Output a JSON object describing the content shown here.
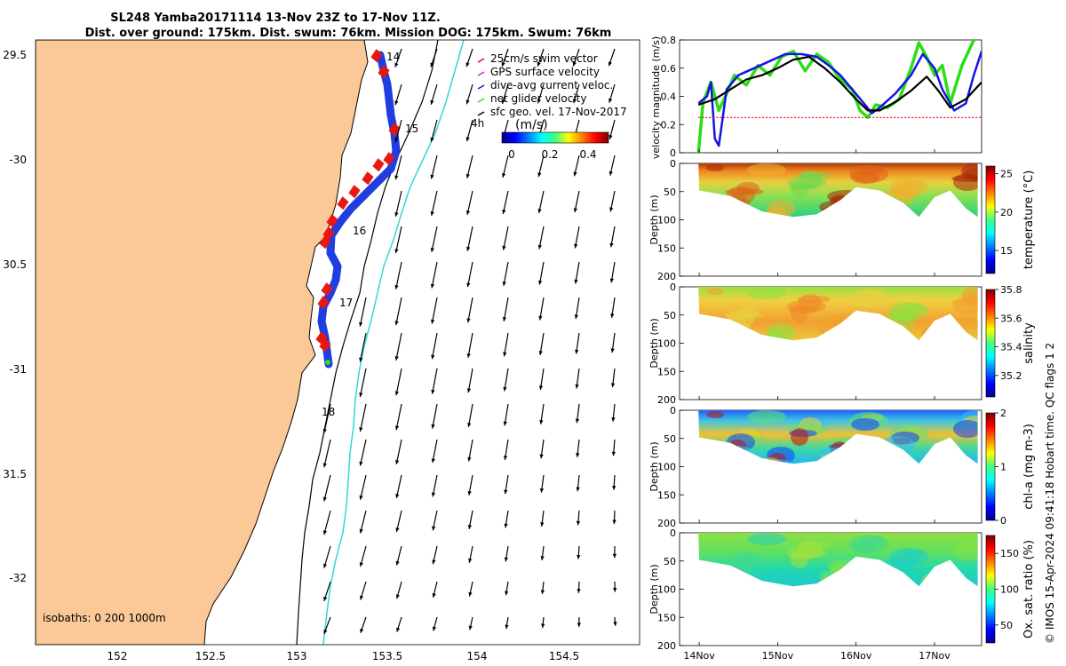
{
  "title": {
    "line1": "SL248 Yamba20171114 13-Nov 23Z to 17-Nov 11Z.",
    "line2": "Dist. over ground: 175km. Dist. swum: 76km. Mission DOG: 175km. Swum: 76km"
  },
  "credit": "© IMOS 15-Apr-2024 09:41:18 Hobart time. QC flags 1  2",
  "colors": {
    "land": "#fbc898",
    "track_blue": "#1f3de0",
    "track_red": "#e8160f",
    "green": "#2ee014",
    "cyan": "#30d8d8",
    "vel_blue": "#1414e6",
    "vel_green": "#2cde14",
    "vel_red": "#e60000"
  },
  "map": {
    "lon_ticks": [
      "152",
      "152.5",
      "153",
      "153.5",
      "154",
      "154.5"
    ],
    "lat_ticks": [
      "29.5",
      "-30",
      "30.5",
      "-31",
      "31.5",
      "-32"
    ],
    "day_labels": [
      "14",
      "15",
      "16",
      "17",
      "18"
    ],
    "isobaths_text": "isobaths: 0   200  1000m",
    "legend": [
      {
        "label": "25cm/s swim vector",
        "color": "#e60000"
      },
      {
        "label": "GPS surface velocity",
        "color": "#d020d0"
      },
      {
        "label": "dive-avg current veloc.",
        "color": "#1414e6"
      },
      {
        "label": "net glider velocity",
        "color": "#2cde14"
      },
      {
        "label": "sfc geo. vel. 17-Nov-2017",
        "color": "#000000"
      }
    ],
    "colorbar_unit": "(m/s)",
    "colorbar_ticks": [
      "0",
      "0.2",
      "0.4"
    ],
    "arrow_note": "4h"
  },
  "chart_data": [
    {
      "type": "line",
      "name": "velocity",
      "ylabel": "velocity magnitude (m/s)",
      "ylim": [
        0,
        0.8
      ],
      "yticks": [
        "0",
        "0.2",
        "0.4",
        "0.6",
        "0.8"
      ],
      "x_ticklabels": [
        "14Nov",
        "15Nov",
        "16Nov",
        "17Nov"
      ],
      "xlim_days": [
        13.75,
        17.6
      ],
      "series": [
        {
          "color": "net",
          "x": [
            13.99,
            14.05,
            14.15,
            14.25,
            14.35,
            14.45,
            14.6,
            14.75,
            14.9,
            15.05,
            15.2,
            15.35,
            15.5,
            15.65,
            15.8,
            15.95,
            16.05,
            16.15,
            16.25,
            16.4,
            16.55,
            16.7,
            16.8,
            16.9,
            17.0,
            17.1,
            17.2,
            17.35,
            17.5,
            17.6
          ],
          "y": [
            0.0,
            0.36,
            0.5,
            0.3,
            0.42,
            0.55,
            0.48,
            0.62,
            0.55,
            0.68,
            0.72,
            0.58,
            0.7,
            0.64,
            0.52,
            0.45,
            0.3,
            0.25,
            0.34,
            0.32,
            0.38,
            0.6,
            0.78,
            0.68,
            0.55,
            0.62,
            0.35,
            0.62,
            0.8,
            0.82
          ]
        },
        {
          "color": "dive",
          "x": [
            13.99,
            14.1,
            14.15,
            14.2,
            14.25,
            14.35,
            14.5,
            14.7,
            14.9,
            15.1,
            15.3,
            15.5,
            15.65,
            15.8,
            15.95,
            16.1,
            16.2,
            16.3,
            16.5,
            16.7,
            16.85,
            17.0,
            17.1,
            17.25,
            17.4,
            17.5,
            17.6
          ],
          "y": [
            0.35,
            0.4,
            0.5,
            0.1,
            0.05,
            0.45,
            0.55,
            0.6,
            0.65,
            0.7,
            0.7,
            0.68,
            0.62,
            0.55,
            0.45,
            0.35,
            0.28,
            0.32,
            0.42,
            0.55,
            0.7,
            0.6,
            0.45,
            0.3,
            0.35,
            0.55,
            0.72
          ]
        },
        {
          "color": "black",
          "x": [
            13.99,
            14.2,
            14.4,
            14.6,
            14.8,
            15.0,
            15.2,
            15.4,
            15.6,
            15.8,
            16.0,
            16.15,
            16.3,
            16.5,
            16.7,
            16.9,
            17.05,
            17.2,
            17.4,
            17.6
          ],
          "y": [
            0.34,
            0.38,
            0.45,
            0.52,
            0.55,
            0.6,
            0.66,
            0.68,
            0.6,
            0.5,
            0.38,
            0.3,
            0.3,
            0.36,
            0.44,
            0.54,
            0.44,
            0.32,
            0.38,
            0.5
          ]
        },
        {
          "color": "red_dash",
          "x": [
            13.99,
            17.6
          ],
          "y": [
            0.25,
            0.25
          ]
        }
      ]
    },
    {
      "type": "heatmap",
      "name": "temperature",
      "ylabel": "Depth (m)",
      "ylim": [
        200,
        0
      ],
      "yticks": [
        "0",
        "50",
        "100",
        "150",
        "200"
      ],
      "cbar_label": "temperature (°C)",
      "cbar_ticks": [
        "25",
        "20",
        "15"
      ],
      "cbar_range": [
        12,
        26
      ]
    },
    {
      "type": "heatmap",
      "name": "salinity",
      "ylabel": "Depth (m)",
      "ylim": [
        200,
        0
      ],
      "yticks": [
        "0",
        "50",
        "100",
        "150",
        "200"
      ],
      "cbar_label": "salinity",
      "cbar_ticks": [
        "35.8",
        "35.6",
        "35.4",
        "35.2"
      ],
      "cbar_range": [
        35.05,
        35.8
      ]
    },
    {
      "type": "heatmap",
      "name": "chl-a",
      "ylabel": "Depth (m)",
      "ylim": [
        200,
        0
      ],
      "yticks": [
        "0",
        "50",
        "100",
        "150",
        "200"
      ],
      "cbar_label": "chl-a (mg m-3)",
      "cbar_ticks": [
        "2",
        "1",
        "0"
      ],
      "cbar_range": [
        0,
        2
      ]
    },
    {
      "type": "heatmap",
      "name": "oxygen",
      "ylabel": "Depth (m)",
      "ylim": [
        200,
        0
      ],
      "yticks": [
        "0",
        "50",
        "100",
        "150",
        "200"
      ],
      "cbar_label": "Ox. sat. ratio (%)",
      "cbar_ticks": [
        "150",
        "100",
        "50"
      ],
      "cbar_range": [
        25,
        175
      ]
    }
  ]
}
